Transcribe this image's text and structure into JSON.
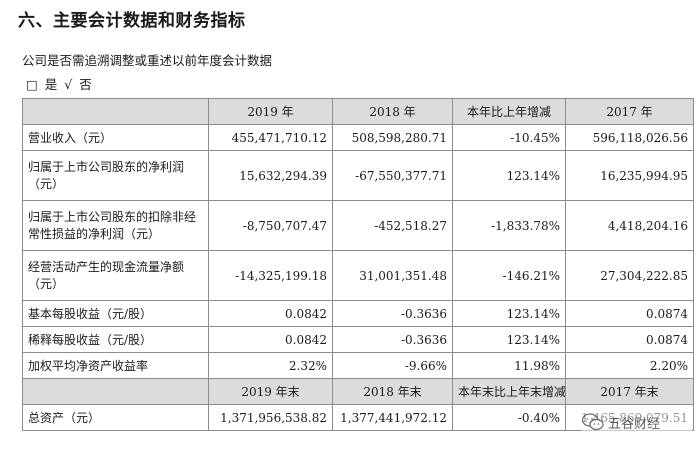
{
  "heading": "六、主要会计数据和财务指标",
  "subtitle": "公司是否需追溯调整或重述以前年度会计数据",
  "options": {
    "box": "□",
    "yes": "是",
    "check": "√",
    "no": "否"
  },
  "table": {
    "header1": [
      "",
      "2019 年",
      "2018 年",
      "本年比上年增减",
      "2017 年"
    ],
    "rows": [
      [
        "营业收入（元）",
        "455,471,710.12",
        "508,598,280.71",
        "-10.45%",
        "596,118,026.56"
      ],
      [
        "归属于上市公司股东的净利润（元）",
        "15,632,294.39",
        "-67,550,377.71",
        "123.14%",
        "16,235,994.95"
      ],
      [
        "归属于上市公司股东的扣除非经常性损益的净利润（元）",
        "-8,750,707.47",
        "-452,518.27",
        "-1,833.78%",
        "4,418,204.16"
      ],
      [
        "经营活动产生的现金流量净额（元）",
        "-14,325,199.18",
        "31,001,351.48",
        "-146.21%",
        "27,304,222.85"
      ],
      [
        "基本每股收益（元/股）",
        "0.0842",
        "-0.3636",
        "123.14%",
        "0.0874"
      ],
      [
        "稀释每股收益（元/股）",
        "0.0842",
        "-0.3636",
        "123.14%",
        "0.0874"
      ],
      [
        "加权平均净资产收益率",
        "2.32%",
        "-9.66%",
        "11.98%",
        "2.20%"
      ]
    ],
    "header2": [
      "",
      "2019 年末",
      "2018 年末",
      "本年末比上年末增减",
      "2017 年末"
    ],
    "last_row": [
      "总资产（元）",
      "1,371,956,538.82",
      "1,377,441,972.12",
      "-0.40%",
      "1,465,869,079.51"
    ]
  },
  "watermark": {
    "text": "五谷财经",
    "icon": "wechat-icon"
  }
}
